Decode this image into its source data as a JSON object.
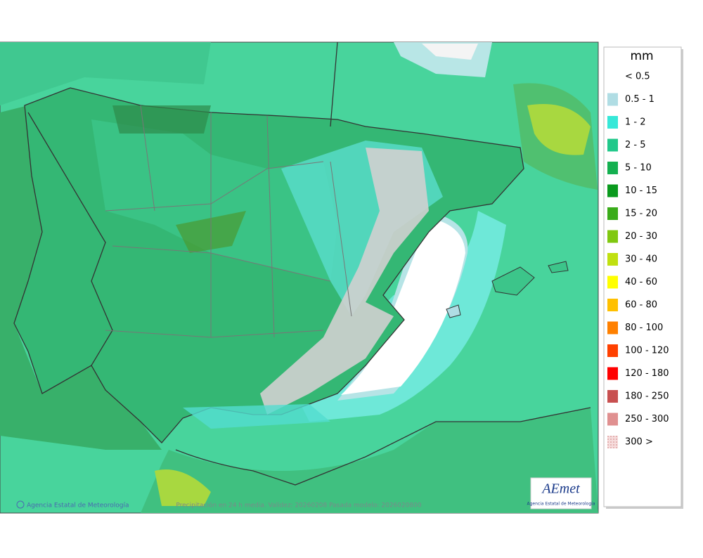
{
  "legend": {
    "title": "mm",
    "items": [
      {
        "label": "< 0.5",
        "color": "#ffffff"
      },
      {
        "label": "0.5 - 1",
        "color": "#b0dde4"
      },
      {
        "label": "1 - 2",
        "color": "#36e8d8"
      },
      {
        "label": "2 - 5",
        "color": "#20c88a"
      },
      {
        "label": "5 - 10",
        "color": "#14b050"
      },
      {
        "label": "10 - 15",
        "color": "#0a9a1e"
      },
      {
        "label": "15 - 20",
        "color": "#3aac1a"
      },
      {
        "label": "20 - 30",
        "color": "#80c810"
      },
      {
        "label": "30 - 40",
        "color": "#c0e010"
      },
      {
        "label": "40 - 60",
        "color": "#ffff00"
      },
      {
        "label": "60 - 80",
        "color": "#ffc000"
      },
      {
        "label": "80 - 100",
        "color": "#ff8000"
      },
      {
        "label": "100 - 120",
        "color": "#ff4000"
      },
      {
        "label": "120 - 180",
        "color": "#ff0000"
      },
      {
        "label": "180 - 250",
        "color": "#c85050"
      },
      {
        "label": "250 - 300",
        "color": "#e09090"
      },
      {
        "label": "300 >",
        "color": "#f0c8c8"
      }
    ]
  },
  "footer": {
    "credit": "Agencia Estatal de Meteorología",
    "caption": "Precipitación en 24 h media. Validez: 20260208 Pasada modelo: 2026020800"
  },
  "logo": {
    "name": "AEmet",
    "subtitle": "Agencia Estatal de Meteorología"
  }
}
